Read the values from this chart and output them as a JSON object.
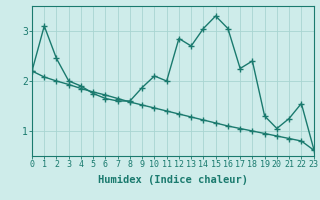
{
  "xlabel": "Humidex (Indice chaleur)",
  "ylabel": "",
  "bg_color": "#ceecea",
  "line_color": "#1a7a6e",
  "grid_color": "#a8d5d1",
  "x_data": [
    0,
    1,
    2,
    3,
    4,
    5,
    6,
    7,
    8,
    9,
    10,
    11,
    12,
    13,
    14,
    15,
    16,
    17,
    18,
    19,
    20,
    21,
    22,
    23
  ],
  "y_jagged": [
    2.2,
    3.1,
    2.45,
    2.0,
    1.9,
    1.75,
    1.65,
    1.6,
    1.6,
    1.87,
    2.1,
    2.0,
    2.85,
    2.7,
    3.05,
    3.3,
    3.05,
    2.25,
    2.4,
    1.3,
    1.05,
    1.25,
    1.55,
    0.65
  ],
  "y_trend": [
    2.2,
    2.08,
    2.0,
    1.93,
    1.85,
    1.78,
    1.72,
    1.65,
    1.58,
    1.52,
    1.46,
    1.4,
    1.34,
    1.28,
    1.22,
    1.16,
    1.1,
    1.05,
    1.0,
    0.95,
    0.9,
    0.85,
    0.8,
    0.62
  ],
  "xlim": [
    0,
    23
  ],
  "ylim": [
    0.5,
    3.5
  ],
  "yticks": [
    1,
    2,
    3
  ],
  "xticks": [
    0,
    1,
    2,
    3,
    4,
    5,
    6,
    7,
    8,
    9,
    10,
    11,
    12,
    13,
    14,
    15,
    16,
    17,
    18,
    19,
    20,
    21,
    22,
    23
  ],
  "marker": "+",
  "markersize": 4,
  "linewidth": 1.0,
  "tick_fontsize": 6.0,
  "xlabel_fontsize": 7.5
}
